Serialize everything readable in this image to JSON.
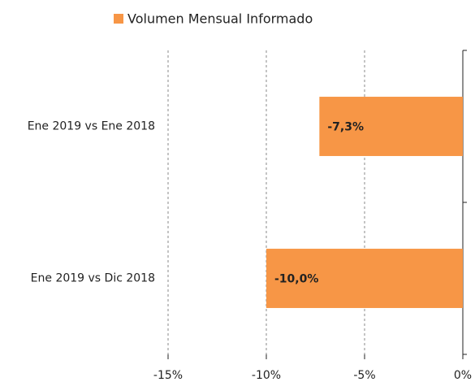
{
  "chart_data": {
    "type": "bar",
    "orientation": "horizontal",
    "categories": [
      "Ene 2019 vs Ene 2018",
      "Ene 2019 vs Dic 2018"
    ],
    "series": [
      {
        "name": "Volumen Mensual Informado",
        "color": "#f79646",
        "values": [
          -7.3,
          -10.0
        ],
        "value_labels": [
          "-7,3%",
          "-10,0%"
        ]
      }
    ],
    "xlim": [
      -15,
      0
    ],
    "xticks": [
      {
        "value": -15,
        "label": "-15%"
      },
      {
        "value": -10,
        "label": "-10%"
      },
      {
        "value": -5,
        "label": "-5%"
      },
      {
        "value": 0,
        "label": "0%"
      }
    ],
    "grid": true,
    "legend": "top"
  }
}
